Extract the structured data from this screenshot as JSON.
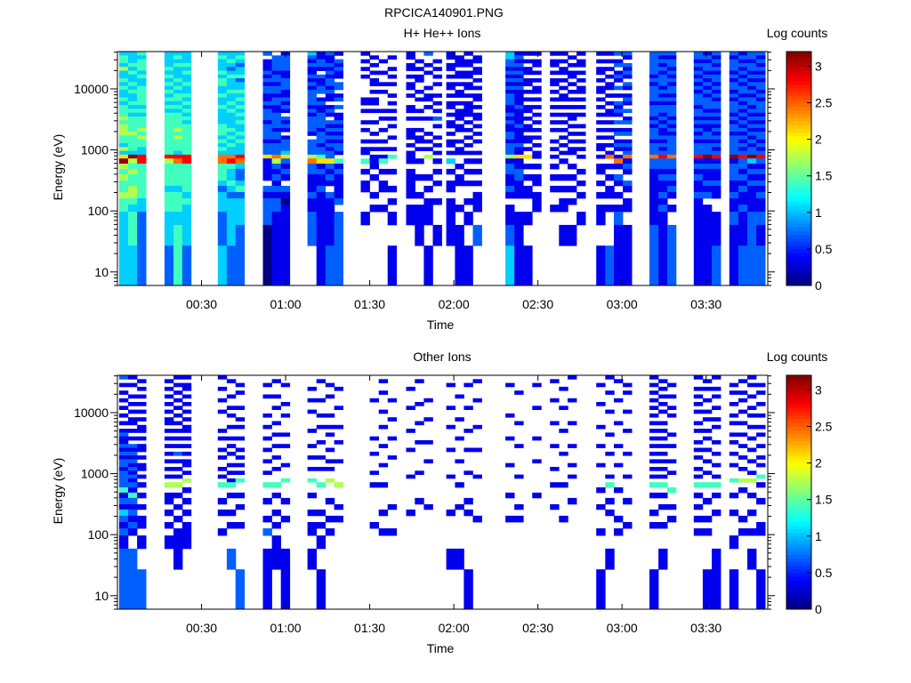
{
  "figure_title": "RPCICA140901.PNG",
  "chart_data": [
    {
      "type": "heatmap",
      "title": "H+ He++ Ions",
      "xlabel": "Time",
      "ylabel": "Energy (eV)",
      "colorbar_label": "Log counts",
      "colormap": "jet",
      "clim": [
        0,
        3.2
      ],
      "colorbar_ticks": [
        "0",
        "0.5",
        "1",
        "1.5",
        "2",
        "2.5",
        "3"
      ],
      "x_ticks": [
        "00:30",
        "01:00",
        "01:30",
        "02:00",
        "02:30",
        "03:00",
        "03:30"
      ],
      "x_tick_minutes": [
        30,
        60,
        90,
        120,
        150,
        180,
        210
      ],
      "xlim_minutes": [
        0,
        232
      ],
      "y_scale": "log",
      "ylim": [
        6,
        40900
      ],
      "y_ticks": [
        "10",
        "100",
        "1000",
        "10000"
      ],
      "y_tick_values": [
        10,
        100,
        1000,
        10000
      ],
      "energy_bin_edges_eV": [
        40900,
        35400,
        30650,
        26540,
        22980,
        19900,
        17230,
        14920,
        12920,
        11190,
        9690,
        8390,
        7260,
        6290,
        5440,
        4710,
        4080,
        3530,
        3060,
        2650,
        2290,
        1985,
        1720,
        1490,
        1290,
        1115,
        966,
        836,
        724,
        596,
        488,
        399,
        315,
        258,
        204,
        161,
        127,
        97,
        59,
        27,
        6
      ],
      "value_encoding": "each character is one energy bin (top to bottom); digit d means log counts = d*0.35; '.' means no counts",
      "time_bin_minutes": 3.17,
      "columns": [
        {
          "t": 0.6,
          "v": "34435334343343444545554435369545445443333"
        },
        {
          "t": 3.8,
          "v": "33343433434334343444454444395454455434433"
        },
        {
          "t": 7.0,
          "v": "43444343344444343444545443388444444332222"
        },
        {
          "t": 16.8,
          "v": "33334343434343434444444444485444434443323"
        },
        {
          "t": 20.0,
          "v": "34343334343443434444545444387444434443443"
        },
        {
          "t": 23.1,
          "v": "33343433433434343434444444488444443433322"
        },
        {
          "t": 35.8,
          "v": "34333434433433433334443434377444323332233"
        },
        {
          "t": 39.0,
          "v": "33432343334334343333434343378433432333322"
        },
        {
          "t": 42.1,
          "v": "34323342334343434343343433387322342333222"
        },
        {
          "t": 51.9,
          "v": "2.111212122112122212222122261111.21222000"
        },
        {
          "t": 55.1,
          "v": ".2222122122122112222122122275212121221111"
        },
        {
          "t": 58.3,
          "v": "1222211222112121.2121.1222362121.2101111"
        },
        {
          "t": 67.8,
          "v": "3212112121222212122221.2222572211121122"
        },
        {
          "t": 71.0,
          "v": "11221.21122.1211222212221224612112111111"
        },
        {
          "t": 74.2,
          "v": "2112121221211.121.212121212262121.211112"
        },
        {
          "t": 77.3,
          "v": "1.21211.22.12.2.11212121221.41211112.2222"
        },
        {
          "t": 86.8,
          "v": "1.1.1.1.....11.1..1.1..1.11.4.1.11...1..."
        },
        {
          "t": 90.0,
          "v": ".1.1.1.11.1.11.1..1..1.1.1.111.1..1.1..."
        },
        {
          "t": 93.2,
          "v": "..1..1..1.1....1.1..1..1.1.14.1.11..1...1"
        },
        {
          "t": 96.4,
          "v": ".1..1.1.1..1.1.1.1.1..1..1.4..1..1.1.1.1"
        },
        {
          "t": 103.0,
          "v": "11.11.1.11.1..11.1..111.1.111.11111.11.."
        },
        {
          "t": 106.1,
          "v": "..1.1.11..1.1..1.1..1.11.1..1..1..1.111.1"
        },
        {
          "t": 109.3,
          "v": "2..1.1...1.11.1..1...1.1.1.5...1.1.111.1"
        },
        {
          "t": 112.5,
          "v": "..1.1.1.1..1.1.1.2.1..1.1.1.1.1.1..1..1."
        },
        {
          "t": 117.3,
          "v": "11.11.1.11.1.11.1.11.1.11.1.3.1.11.1111.1"
        },
        {
          "t": 120.4,
          "v": ".111.11.1.11.1.111.11..1.11..1.11...1.11"
        },
        {
          "t": 123.6,
          "v": "1.11.11.11.1.1111.1.1.1.1.1.1.1.1..1.1.12"
        },
        {
          "t": 126.8,
          "v": ".11.11.1.1.11.1.11.1.1.1..1.1.1.1.111.2"
        },
        {
          "t": 138.4,
          "v": "33221212121222112121122122251221121.1123"
        },
        {
          "t": 141.6,
          "v": "12121212121111211112111121161122111..111"
        },
        {
          "t": 144.8,
          "v": "1.1.11.11.1.1.11.1.11.11.1.6.1.1.11..1.1"
        },
        {
          "t": 148.0,
          "v": "1.11.1.1.11.1.1.1.1.1.1.1.11.1.11.111..."
        },
        {
          "t": 154.3,
          "v": "1.11.1.11.1.1.1.1.1.1..1.1.1.1.1.1..1..."
        },
        {
          "t": 157.5,
          "v": "1.1.11.1.1.11.1.1.1.1.1.1.1.1..1.1.11.1.1"
        },
        {
          "t": 160.6,
          "v": ".1.1.11.1.1.1.1.11.1.1.1.11..1.1.1.1..1"
        },
        {
          "t": 163.8,
          "v": "1.11.1.1.11.1.1.1..1.1.1.1.1..1.1.1..1..1"
        },
        {
          "t": 170.8,
          "v": "1.1.11.1.11.1.1.1.1.1.1.11.1.11.1.1.11.11"
        },
        {
          "t": 174.0,
          "v": "1.1.1.1.11.1.1.11.1.1.1.1.17.1.1.11.1..2"
        },
        {
          "t": 177.1,
          "v": "2.12.121.2.1.2121.2.12.121.171.21.1.12112"
        },
        {
          "t": 180.3,
          "v": "21.2121.21.121.2.12.12.12127121.21.11.112"
        },
        {
          "t": 189.8,
          "v": "22222212122221222121222122272211111111222"
        },
        {
          "t": 193.0,
          "v": "21212122212121221212112121282212112121111"
        },
        {
          "t": 196.1,
          "v": "21221212122121222121212222272212121.1.222"
        },
        {
          "t": 205.6,
          "v": "22121212121222122121212122281212112111112"
        },
        {
          "t": 208.8,
          "v": "12122121212122212121122122291211212.11112"
        },
        {
          "t": 212.0,
          "v": "21212122121212212121212121281211211..1122"
        },
        {
          "t": 218.3,
          "v": "21222121221212221212212222291222112112112"
        },
        {
          "t": 221.5,
          "v": "12121212122121212121212121282212121121122"
        },
        {
          "t": 224.7,
          "v": "22122121212122121212121212293121211112222"
        },
        {
          "t": 227.9,
          "v": "21212121221212221212122121282121212112122"
        }
      ]
    },
    {
      "type": "heatmap",
      "title": "Other Ions",
      "xlabel": "Time",
      "ylabel": "Energy (eV)",
      "colorbar_label": "Log counts",
      "colormap": "jet",
      "clim": [
        0,
        3.2
      ],
      "colorbar_ticks": [
        "0",
        "0.5",
        "1",
        "1.5",
        "2",
        "2.5",
        "3"
      ],
      "x_ticks": [
        "00:30",
        "01:00",
        "01:30",
        "02:00",
        "02:30",
        "03:00",
        "03:30"
      ],
      "x_tick_minutes": [
        30,
        60,
        90,
        120,
        150,
        180,
        210
      ],
      "xlim_minutes": [
        0,
        232
      ],
      "y_scale": "log",
      "ylim": [
        6,
        40900
      ],
      "y_ticks": [
        "10",
        "100",
        "1000",
        "10000"
      ],
      "y_tick_values": [
        10,
        100,
        1000,
        10000
      ],
      "energy_bin_edges_eV": [
        40900,
        35400,
        30650,
        26540,
        22980,
        19900,
        17230,
        14920,
        12920,
        11190,
        9690,
        8390,
        7260,
        6290,
        5440,
        4710,
        4080,
        3530,
        3060,
        2650,
        2290,
        1985,
        1720,
        1490,
        1290,
        1115,
        966,
        836,
        724,
        596,
        488,
        399,
        315,
        258,
        204,
        161,
        127,
        97,
        59,
        27,
        6
      ],
      "value_encoding": "each character is one energy bin (top to bottom); digit d means log counts = d*0.35; '.' means no counts",
      "time_bin_minutes": 3.17,
      "columns": [
        {
          "t": 0.6,
          "v": "2.1.1.1.1.1.1.1211212122122224121321212223"
        },
        {
          "t": 3.8,
          "v": "1.1..1.1.1.11.1.1.2121212121214212121.2222"
        },
        {
          "t": 7.0,
          "v": ".1.1.1.1.1.1.11.1.11.1.11.1.1.1.1.11.1.22"
        },
        {
          "t": 16.8,
          "v": ".1.1.1.1.1.11.1.1.1.1.1.1.1.5.11.1.1.1..2"
        },
        {
          "t": 20.0,
          "v": "1.1.1.1.1.1.1.1.1.1.2.1.1.1.5.1.1.1.111.1"
        },
        {
          "t": 23.1,
          "v": "1.11.1.1.1.1.11.1.1.1.11.1.5.1.1.1.111..2"
        },
        {
          "t": 35.8,
          "v": "1..1..1..1....1.1..1.1..1.1.4..1.1..1...."
        },
        {
          "t": 39.0,
          "v": ".1...1..1.1..1..1.1.1..1.1.14.1..1.1..2.2"
        },
        {
          "t": 42.1,
          "v": "..1.1...1..1.1..1..1.1.1.1.4..1.1..1...2"
        },
        {
          "t": 51.9,
          "v": "..1..1....1..1..1..1..1..1..4..1..1.2.11"
        },
        {
          "t": 55.1,
          "v": ".1...1..1...1..1..1..1..1...4.1..1.1.11."
        },
        {
          "t": 58.3,
          "v": "..1....1..1....1..1....1...4...1..1...11"
        },
        {
          "t": 67.8,
          "v": "...1..1..1....1...1..1..1..4..1..1.11.1."
        },
        {
          "t": 71.0,
          "v": ".1....1...1..1...1...1..1...4....1.1.1.1."
        },
        {
          "t": 74.2,
          "v": "..1..1....1..1.1...1..1.1..5...1..1.1...."
        },
        {
          "t": 77.3,
          "v": "...1....1....1...1....1.....5...1.1......."
        },
        {
          "t": 90.0,
          "v": "......1.........1...1....1..1......1....."
        },
        {
          "t": 93.2,
          "v": ".1..1....1...1....1....1....1....1..1...."
        },
        {
          "t": 96.4,
          "v": "......1....1....1....1..........1...1...."
        },
        {
          "t": 103.0,
          "v": "...1....1.....1....1......1......1......."
        },
        {
          "t": 106.1,
          "v": ".1.....1....1....1.......1.....1........."
        },
        {
          "t": 109.3,
          "v": "......1....1.....1....1.........1......."
        },
        {
          "t": 117.3,
          "v": "..1.....1....1.....1......1......1....1.."
        },
        {
          "t": 120.4,
          "v": ".....1.....1....1.....1.....1...1.....1.1"
        },
        {
          "t": 123.6,
          "v": "..1.....1.....1....1.....1.....1.1.....1"
        },
        {
          "t": 126.8,
          "v": ".1....1......1.....1......1.......1......"
        },
        {
          "t": 138.4,
          "v": "..1.......1.....1......1......1...1......"
        },
        {
          "t": 141.6,
          "v": "....1.......1.....1.......1.....1.1......"
        },
        {
          "t": 148.0,
          "v": "..1.....1.......1.....1.......1.........."
        },
        {
          "t": 154.3,
          "v": ".1....1.....1.....1.....1...1...1......."
        },
        {
          "t": 157.5,
          "v": "...1....1.....1.....1.......1.....1......"
        },
        {
          "t": 160.6,
          "v": "1.....1.....1.....1....1..1....1........."
        },
        {
          "t": 170.8,
          "v": "..1....1.....1....1....1.....1..1...1..1."
        },
        {
          "t": 174.0,
          "v": "1...1....1.....1....1.....1.4..1.1....1.1"
        },
        {
          "t": 177.1,
          "v": ".1....1.....1.....1....1.....1....1.1...."
        },
        {
          "t": 180.3,
          "v": "..1.1....1....1.....1.....1....1...1....."
        },
        {
          "t": 189.8,
          "v": "1.1.1.1.1.1.1.1.1.1.1.1.1.1.4.1..1.1...1.1"
        },
        {
          "t": 193.0,
          "v": ".1.1.1.1.1..1.1.1.1.1.1.1.1.4.1.1..1..1.."
        },
        {
          "t": 196.1,
          "v": "..1..1..1.1....1..1...1..1...4..1.1......"
        },
        {
          "t": 205.6,
          "v": "1..1.1.1.1..1.1..1.1.1..1.1.4.1.1.1.1...."
        },
        {
          "t": 208.8,
          "v": ".1.1..1..1.1..1.1..1..1..1..4..1..1.1..11."
        },
        {
          "t": 212.0,
          "v": "1..1.1..1..1.1...1..1..1..1.4.1..1....11."
        },
        {
          "t": 218.3,
          "v": "..1.1..1..1.1..1.1..1..1...4..1..1...1.1."
        },
        {
          "t": 221.5,
          "v": ".1..1.1..1..1..1..1..1..1..5.1....1.1...."
        },
        {
          "t": 224.7,
          "v": "1.1..1..1.1..1..1..1..1..1.5..1..1..1.1.1"
        },
        {
          "t": 227.9,
          "v": "..1.1..1..1..1.1..1..1.1..4.1..1...11..1."
        }
      ]
    }
  ]
}
